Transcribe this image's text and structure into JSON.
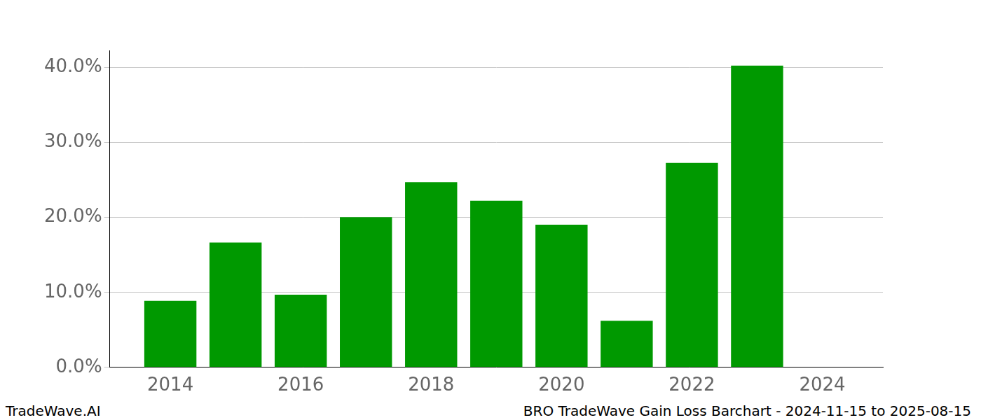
{
  "chart_data": {
    "type": "bar",
    "title": "BRO TradeWave Gain Loss Barchart - 2024-11-15 to 2025-08-15",
    "annotations": [
      "TradeWave.AI"
    ],
    "x": [
      2014,
      2015,
      2016,
      2017,
      2018,
      2019,
      2020,
      2021,
      2022,
      2023
    ],
    "values": [
      8.88,
      16.66,
      9.7,
      20.05,
      24.71,
      22.24,
      19.04,
      6.22,
      27.28,
      40.27
    ],
    "color": "#009900",
    "xlim": [
      2013.07,
      2024.93
    ],
    "xticks": [
      2014,
      2016,
      2018,
      2020,
      2022,
      2024
    ],
    "ylim": [
      0,
      42.3
    ],
    "yticks": [
      {
        "value": 0,
        "label": "0.0%"
      },
      {
        "value": 10,
        "label": "10.0%"
      },
      {
        "value": 20,
        "label": "20.0%"
      },
      {
        "value": 30,
        "label": "30.0%"
      },
      {
        "value": 40,
        "label": "40.0%"
      }
    ],
    "grid": true
  }
}
